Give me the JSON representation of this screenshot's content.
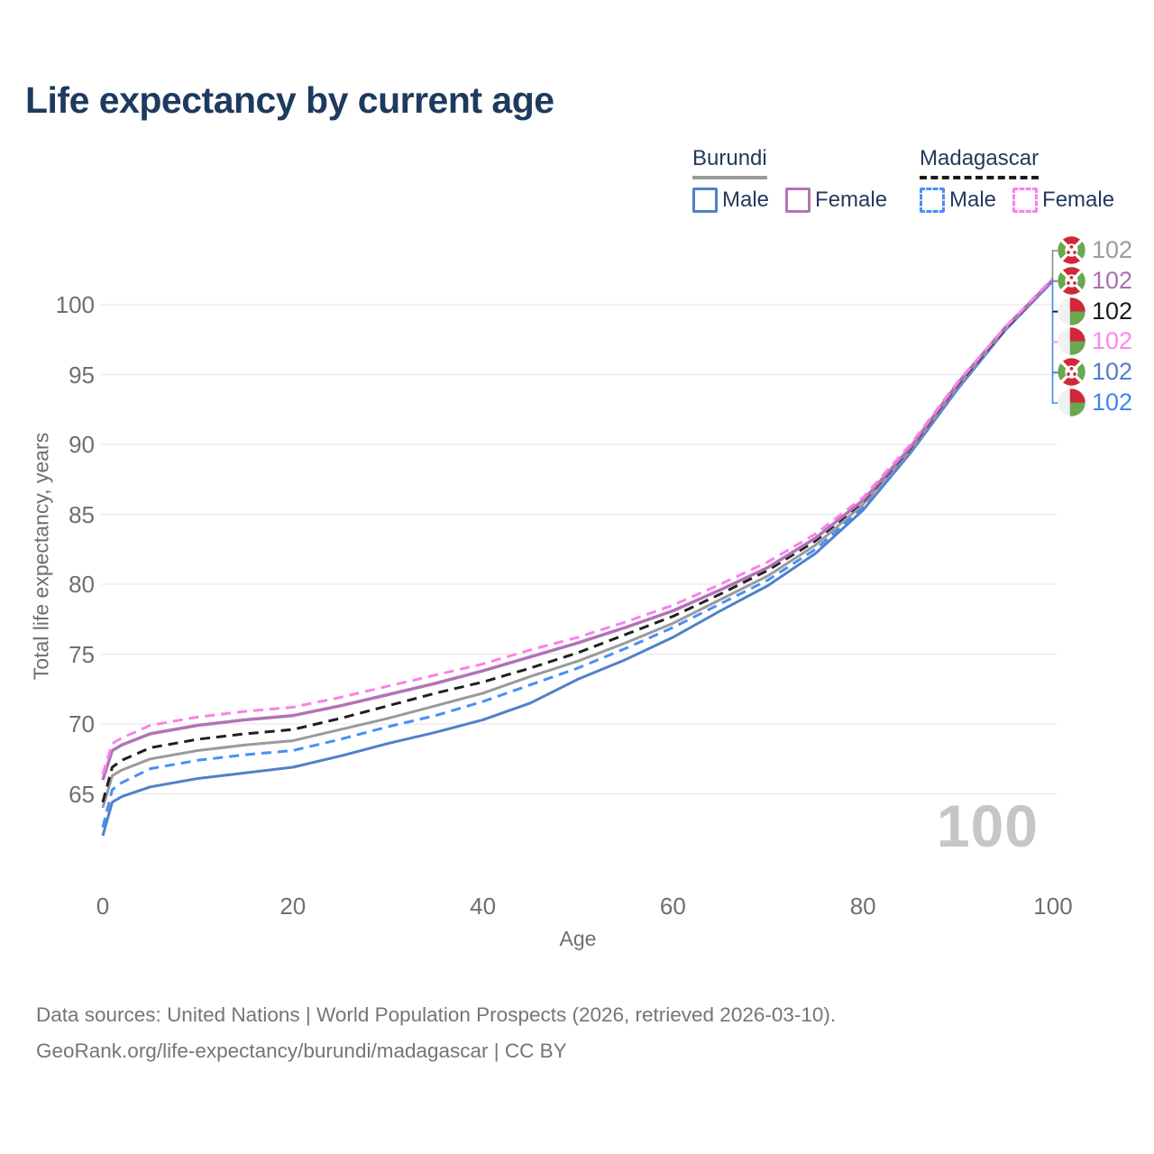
{
  "title": "Life expectancy by current age",
  "legend": {
    "groups": [
      {
        "name": "Burundi",
        "line_style": "solid",
        "underline_color": "#9a9a9a",
        "items": [
          {
            "label": "Male",
            "color": "#5180c8"
          },
          {
            "label": "Female",
            "color": "#b273b5"
          }
        ]
      },
      {
        "name": "Madagascar",
        "line_style": "dashed",
        "underline_color": "#1c1c1c",
        "items": [
          {
            "label": "Male",
            "color": "#4a8ef5"
          },
          {
            "label": "Female",
            "color": "#fb80ec"
          }
        ]
      }
    ]
  },
  "chart_data": {
    "type": "line",
    "title": "Life expectancy by current age",
    "xlabel": "Age",
    "ylabel": "Total life expectancy, years",
    "x_ticks": [
      0,
      20,
      40,
      60,
      80,
      100
    ],
    "y_ticks": [
      65,
      70,
      75,
      80,
      85,
      90,
      95,
      100
    ],
    "xlim": [
      0,
      100
    ],
    "ylim": [
      61,
      103
    ],
    "grid": "horizontal",
    "grid_color": "#e9e9e9",
    "x": [
      0,
      1,
      2,
      5,
      10,
      15,
      20,
      25,
      30,
      35,
      40,
      45,
      50,
      55,
      60,
      65,
      70,
      75,
      80,
      85,
      90,
      95,
      100
    ],
    "series": [
      {
        "name": "Burundi Male",
        "country": "burundi",
        "sex": "male",
        "style": "solid",
        "color": "#5180c8",
        "width": 3,
        "values": [
          62.0,
          64.4,
          64.8,
          65.5,
          66.1,
          66.5,
          66.9,
          67.7,
          68.6,
          69.4,
          70.3,
          71.5,
          73.2,
          74.6,
          76.2,
          78.1,
          79.9,
          82.2,
          85.3,
          89.4,
          94.0,
          98.2,
          101.7
        ]
      },
      {
        "name": "Madagascar Male",
        "country": "madagascar",
        "sex": "male",
        "style": "dashed",
        "color": "#4a8ef5",
        "width": 3,
        "values": [
          62.6,
          65.3,
          65.8,
          66.8,
          67.4,
          67.8,
          68.1,
          68.9,
          69.8,
          70.6,
          71.6,
          72.8,
          74.0,
          75.4,
          76.9,
          78.6,
          80.3,
          82.5,
          85.5,
          89.5,
          94.1,
          98.3,
          101.7
        ]
      },
      {
        "name": "Burundi Both sexes",
        "country": "burundi",
        "sex": "both",
        "style": "solid",
        "color": "#9a9a9a",
        "width": 3,
        "values": [
          64.0,
          66.3,
          66.7,
          67.5,
          68.1,
          68.5,
          68.8,
          69.6,
          70.4,
          71.3,
          72.2,
          73.4,
          74.5,
          75.8,
          77.2,
          78.9,
          80.6,
          82.8,
          85.7,
          89.6,
          94.2,
          98.3,
          101.8
        ]
      },
      {
        "name": "Madagascar Both sexes",
        "country": "madagascar",
        "sex": "both",
        "style": "dashed",
        "color": "#1f1f1f",
        "width": 3,
        "values": [
          64.4,
          66.9,
          67.4,
          68.3,
          68.9,
          69.3,
          69.6,
          70.4,
          71.3,
          72.2,
          73.0,
          74.0,
          75.1,
          76.4,
          77.7,
          79.3,
          81.0,
          83.1,
          85.9,
          89.7,
          94.3,
          98.3,
          101.8
        ]
      },
      {
        "name": "Burundi Female",
        "country": "burundi",
        "sex": "female",
        "style": "solid",
        "color": "#b273b5",
        "width": 3.5,
        "values": [
          66.0,
          68.1,
          68.5,
          69.3,
          69.9,
          70.3,
          70.6,
          71.3,
          72.1,
          72.9,
          73.8,
          74.8,
          75.8,
          76.9,
          78.1,
          79.6,
          81.2,
          83.3,
          86.0,
          89.8,
          94.4,
          98.4,
          101.8
        ]
      },
      {
        "name": "Madagascar Female",
        "country": "madagascar",
        "sex": "female",
        "style": "dashed",
        "color": "#fb80ec",
        "width": 3,
        "values": [
          66.4,
          68.6,
          69.0,
          69.9,
          70.5,
          70.9,
          71.2,
          71.9,
          72.7,
          73.5,
          74.3,
          75.3,
          76.2,
          77.3,
          78.5,
          80.0,
          81.6,
          83.6,
          86.2,
          90.0,
          94.5,
          98.4,
          101.9
        ]
      }
    ]
  },
  "end_labels": [
    {
      "flag": "burundi",
      "value": "102",
      "color": "#9c9c9c"
    },
    {
      "flag": "burundi",
      "value": "102",
      "color": "#ab6fae"
    },
    {
      "flag": "madagascar",
      "value": "102",
      "color": "#1c1c1c"
    },
    {
      "flag": "madagascar",
      "value": "102",
      "color": "#fb87ee"
    },
    {
      "flag": "burundi",
      "value": "102",
      "color": "#527fc4"
    },
    {
      "flag": "madagascar",
      "value": "102",
      "color": "#4186ef"
    }
  ],
  "watermark": "100",
  "footer": {
    "line1": "Data sources: United Nations | World Population Prospects (2026, retrieved 2026-03-10).",
    "line2": "GeoRank.org/life-expectancy/burundi/madagascar | CC BY"
  }
}
